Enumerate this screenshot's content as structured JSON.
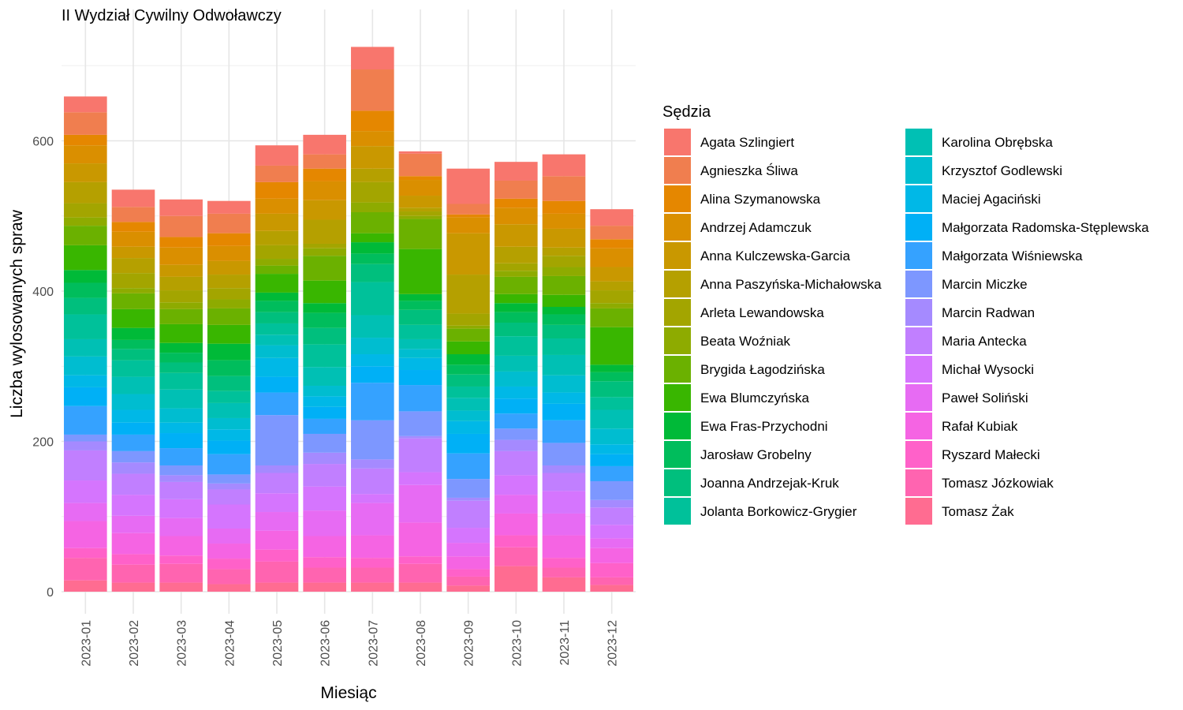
{
  "chart_data": {
    "type": "bar",
    "stacked": true,
    "title": "II Wydział Cywilny Odwoławczy",
    "xlabel": "Miesiąc",
    "ylabel": "Liczba wylosowanych spraw",
    "ylim": [
      0,
      740
    ],
    "y_ticks": [
      "0",
      "200",
      "400",
      "600"
    ],
    "grid": true,
    "legend_title": "Sędzia",
    "legend_position": "right",
    "categories": [
      "2023-01",
      "2023-02",
      "2023-03",
      "2023-04",
      "2023-05",
      "2023-06",
      "2023-07",
      "2023-08",
      "2023-09",
      "2023-10",
      "2023-11",
      "2023-12"
    ],
    "series": [
      {
        "name": "Agata Szlingiert",
        "color": "#F8766D",
        "values": [
          21,
          23,
          22,
          17,
          27,
          26,
          30,
          3,
          47,
          25,
          29,
          22
        ]
      },
      {
        "name": "Agnieszka Śliwa",
        "color": "#F07E4F",
        "values": [
          30,
          20,
          28,
          26,
          22,
          19,
          55,
          30,
          14,
          24,
          33,
          18
        ]
      },
      {
        "name": "Alina Szymanowska",
        "color": "#E58700",
        "values": [
          14,
          13,
          14,
          17,
          22,
          17,
          27,
          5,
          4,
          12,
          17,
          12
        ]
      },
      {
        "name": "Andrzej Adamczuk",
        "color": "#DA8F00",
        "values": [
          24,
          20,
          23,
          20,
          20,
          25,
          20,
          21,
          21,
          22,
          20,
          25
        ]
      },
      {
        "name": "Anna Kulczewska-Garcia",
        "color": "#C99800",
        "values": [
          25,
          15,
          16,
          18,
          23,
          26,
          30,
          16,
          55,
          30,
          25,
          19
        ]
      },
      {
        "name": "Anna Paszyńska-Michałowska",
        "color": "#B5A000",
        "values": [
          28,
          20,
          18,
          18,
          19,
          32,
          18,
          5,
          52,
          22,
          11,
          12
        ]
      },
      {
        "name": "Arleta Lewandowska",
        "color": "#A3A500",
        "values": [
          19,
          20,
          16,
          15,
          18,
          6,
          27,
          6,
          16,
          10,
          15,
          17
        ]
      },
      {
        "name": "Beata Woźniak",
        "color": "#8EAB00",
        "values": [
          11,
          7,
          9,
          12,
          9,
          10,
          13,
          4,
          4,
          8,
          12,
          7
        ]
      },
      {
        "name": "Brygida Łagodzińska",
        "color": "#6BB100",
        "values": [
          26,
          21,
          20,
          22,
          11,
          33,
          28,
          40,
          17,
          23,
          25,
          25
        ]
      },
      {
        "name": "Ewa Blumczyńska",
        "color": "#39B600",
        "values": [
          33,
          25,
          25,
          25,
          25,
          30,
          12,
          60,
          17,
          12,
          16,
          50
        ]
      },
      {
        "name": "Ewa Fras-Przychodni",
        "color": "#00BA38",
        "values": [
          17,
          16,
          13,
          22,
          11,
          13,
          15,
          9,
          14,
          12,
          10,
          10
        ]
      },
      {
        "name": "Jarosław Grobelny",
        "color": "#00BD5C",
        "values": [
          20,
          12,
          13,
          21,
          15,
          20,
          14,
          12,
          13,
          14,
          14,
          12
        ]
      },
      {
        "name": "Joanna Andrzejak-Kruk",
        "color": "#00BF7D",
        "values": [
          22,
          15,
          14,
          20,
          15,
          22,
          24,
          20,
          16,
          18,
          18,
          21
        ]
      },
      {
        "name": "Jolanta Borkowicz-Grygier",
        "color": "#00C19A",
        "values": [
          33,
          22,
          22,
          16,
          15,
          30,
          44,
          19,
          15,
          26,
          22,
          17
        ]
      },
      {
        "name": "Karolina Obrębska",
        "color": "#00C0B4",
        "values": [
          23,
          23,
          25,
          20,
          14,
          25,
          30,
          13,
          17,
          21,
          27,
          25
        ]
      },
      {
        "name": "Krzysztof Godlewski",
        "color": "#00BDD0",
        "values": [
          25,
          21,
          19,
          15,
          17,
          14,
          22,
          12,
          14,
          20,
          23,
          21
        ]
      },
      {
        "name": "Maciej Agaciński",
        "color": "#00B8E7",
        "values": [
          16,
          17,
          14,
          15,
          25,
          14,
          16,
          16,
          17,
          16,
          15,
          13
        ]
      },
      {
        "name": "Małgorzata Radomska-Stęplewska",
        "color": "#00B0F6",
        "values": [
          25,
          16,
          20,
          18,
          21,
          16,
          22,
          20,
          26,
          20,
          22,
          16
        ]
      },
      {
        "name": "Małgorzata Wiśniewska",
        "color": "#35A2FF",
        "values": [
          38,
          22,
          23,
          27,
          30,
          20,
          50,
          35,
          34,
          20,
          30,
          20
        ]
      },
      {
        "name": "Marcin Miczke",
        "color": "#7D97FF",
        "values": [
          9,
          15,
          13,
          12,
          67,
          25,
          52,
          33,
          25,
          15,
          30,
          25
        ]
      },
      {
        "name": "Marcin Radwan",
        "color": "#A58AFF",
        "values": [
          12,
          15,
          9,
          8,
          10,
          15,
          12,
          3,
          4,
          15,
          10,
          10
        ]
      },
      {
        "name": "Maria Antecka",
        "color": "#C17FFF",
        "values": [
          40,
          28,
          23,
          20,
          27,
          30,
          34,
          45,
          36,
          32,
          24,
          23
        ]
      },
      {
        "name": "Michał Wysocki",
        "color": "#D575FE",
        "values": [
          30,
          28,
          25,
          32,
          25,
          32,
          12,
          17,
          20,
          26,
          30,
          18
        ]
      },
      {
        "name": "Paweł Soliński",
        "color": "#E76BF3",
        "values": [
          24,
          23,
          24,
          20,
          25,
          34,
          43,
          50,
          18,
          25,
          29,
          13
        ]
      },
      {
        "name": "Rafał Kubiak",
        "color": "#F564E3",
        "values": [
          36,
          28,
          26,
          20,
          25,
          28,
          30,
          45,
          17,
          29,
          30,
          20
        ]
      },
      {
        "name": "Ryszard Małecki",
        "color": "#FF61C9",
        "values": [
          13,
          14,
          11,
          14,
          16,
          14,
          13,
          10,
          10,
          16,
          13,
          19
        ]
      },
      {
        "name": "Tomasz Józkowiak",
        "color": "#FF64B0",
        "values": [
          30,
          24,
          25,
          20,
          28,
          20,
          20,
          25,
          12,
          25,
          13,
          10
        ]
      },
      {
        "name": "Tomasz Żak",
        "color": "#FF6C91",
        "values": [
          15,
          12,
          12,
          10,
          12,
          12,
          12,
          12,
          8,
          34,
          19,
          9
        ]
      }
    ]
  }
}
